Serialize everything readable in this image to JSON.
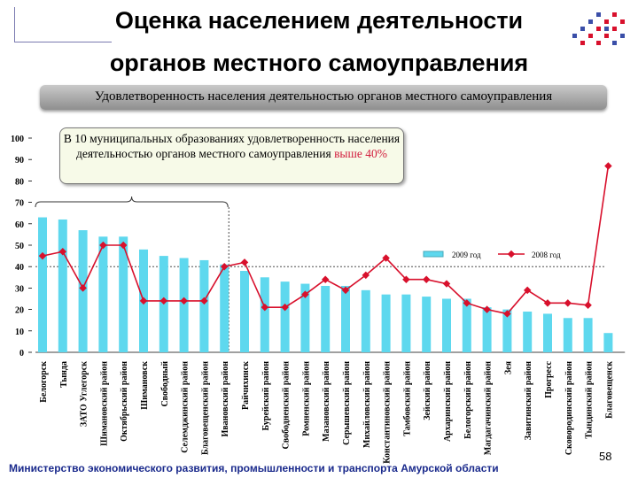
{
  "header": {
    "title_line1": "Оценка населением деятельности",
    "title_line2": "органов местного самоуправления",
    "subtitle": "Удовлетворенность населения деятельностью органов местного самоуправления"
  },
  "note": {
    "text_before": "В 10 муниципальных образованиях удовлетворенность населения деятельностью органов местного самоуправления ",
    "highlight": "выше 40%"
  },
  "footer": {
    "text": "Министерство экономического развития, промышленности и транспорта Амурской области",
    "page": "58"
  },
  "colors": {
    "bar": "#5ed8ee",
    "line": "#d8102c",
    "dots": "#d8102c",
    "footer": "#1a2a8c"
  },
  "chart_data": {
    "type": "bar",
    "title": "Удовлетворенность населения деятельностью органов местного самоуправления",
    "ylim": [
      0,
      100
    ],
    "yticks": [
      0,
      10,
      20,
      30,
      40,
      50,
      60,
      70,
      80,
      90,
      100
    ],
    "reference_line": 40,
    "categories": [
      "Белогорск",
      "Тында",
      "ЗАТО Углегорск",
      "Шимановский район",
      "Октябрьский район",
      "Шимановск",
      "Свободный",
      "Селемджинский район",
      "Благовещенский район",
      "Ивановский район",
      "Райчихинск",
      "Бурейский район",
      "Свободненский район",
      "Ромненский район",
      "Мазановский район",
      "Серышевский район",
      "Михайловский район",
      "Константиновский район",
      "Тамбовский район",
      "Зейский район",
      "Архаринский район",
      "Белогорский район",
      "Магдагачинский район",
      "Зея",
      "Завитинский район",
      "Прогресс",
      "Сковородинский район",
      "Тындинский район",
      "Благовещенск"
    ],
    "series": [
      {
        "name": "2009 год",
        "type": "bar",
        "values": [
          63,
          62,
          57,
          54,
          54,
          48,
          45,
          44,
          43,
          41,
          38,
          35,
          33,
          32,
          31,
          31,
          29,
          27,
          27,
          26,
          25,
          25,
          21,
          20,
          19,
          18,
          16,
          16,
          9
        ]
      },
      {
        "name": "2008 год",
        "type": "line",
        "values": [
          45,
          47,
          30,
          50,
          50,
          24,
          24,
          24,
          24,
          40,
          42,
          21,
          21,
          27,
          34,
          29,
          36,
          44,
          34,
          34,
          32,
          23,
          20,
          18,
          29,
          23,
          23,
          22,
          87
        ]
      }
    ]
  }
}
